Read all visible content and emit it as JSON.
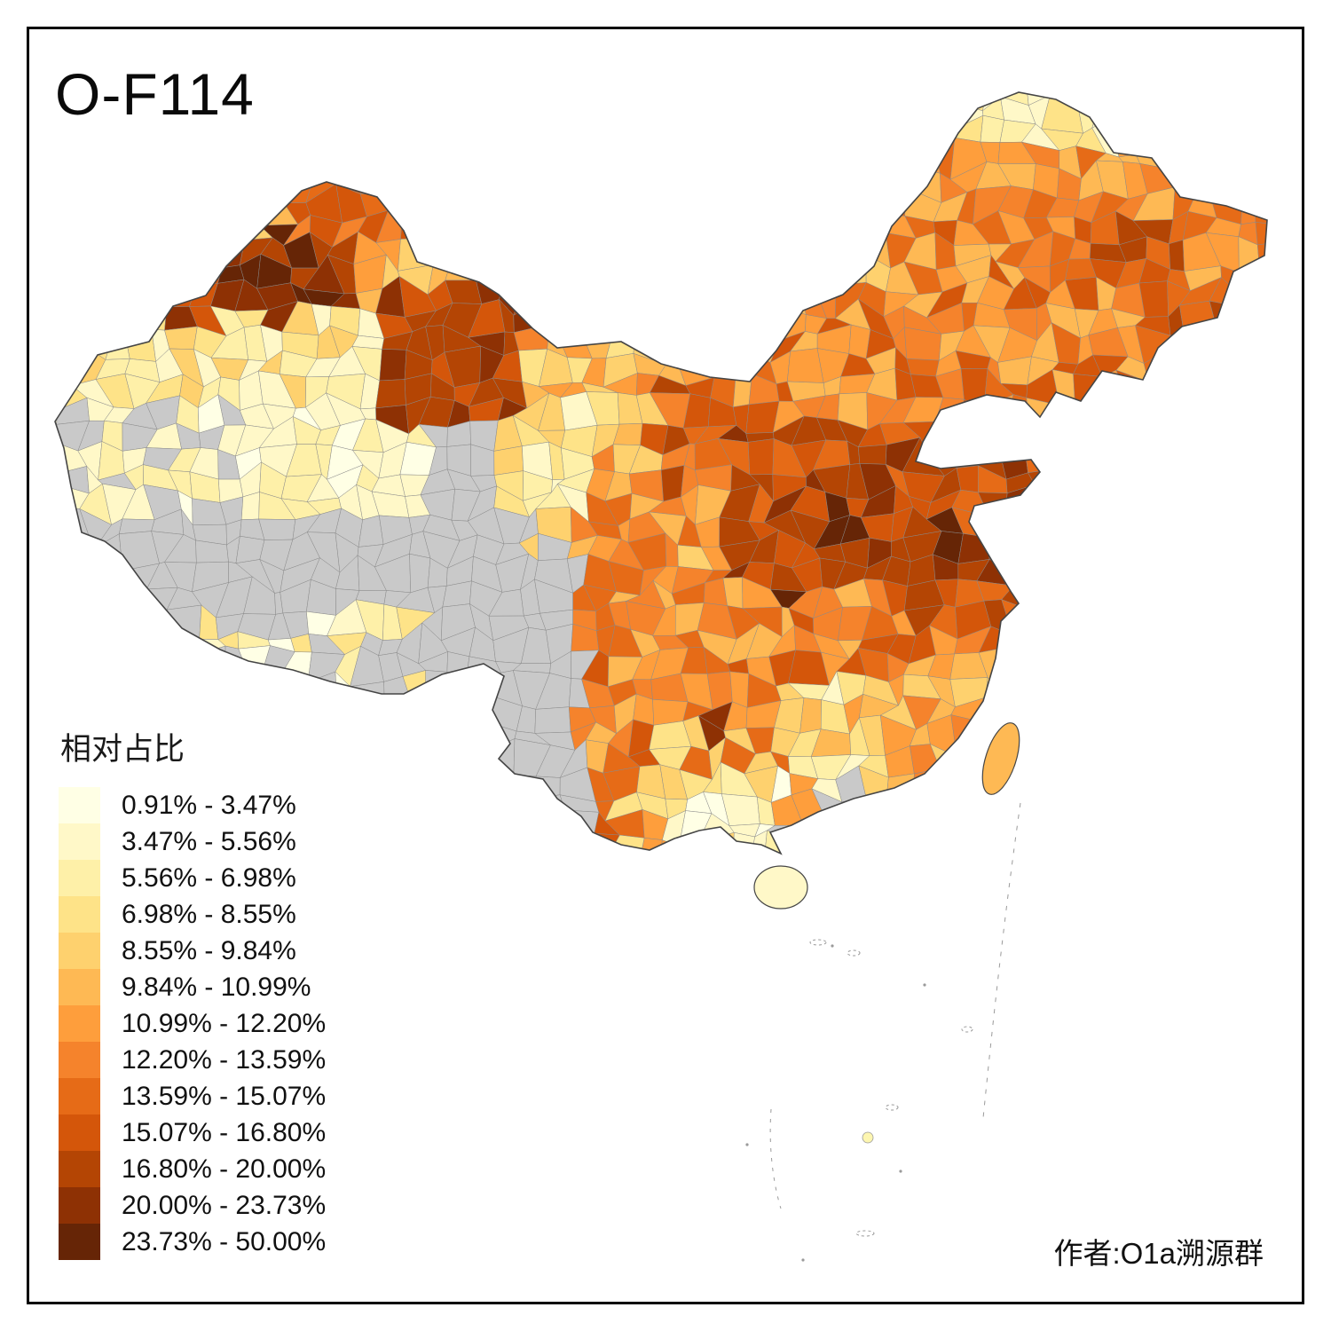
{
  "title": "O-F114",
  "author": "作者:O1a溯源群",
  "legend": {
    "title": "相对占比",
    "items": [
      {
        "label": "0.91% - 3.47%",
        "color": "#FFFFE5"
      },
      {
        "label": "3.47% - 5.56%",
        "color": "#FFF8C8"
      },
      {
        "label": "5.56% - 6.98%",
        "color": "#FEF0A8"
      },
      {
        "label": "6.98% - 8.55%",
        "color": "#FEE388"
      },
      {
        "label": "8.55% - 9.84%",
        "color": "#FED16E"
      },
      {
        "label": "9.84% - 10.99%",
        "color": "#FEB954"
      },
      {
        "label": "10.99% - 12.20%",
        "color": "#FE9E3C"
      },
      {
        "label": "12.20% - 13.59%",
        "color": "#F5832C"
      },
      {
        "label": "13.59% - 15.07%",
        "color": "#E66B17"
      },
      {
        "label": "15.07% - 16.80%",
        "color": "#D4560A"
      },
      {
        "label": "16.80% - 20.00%",
        "color": "#B44504"
      },
      {
        "label": "20.00% - 23.73%",
        "color": "#8E3104"
      },
      {
        "label": "23.73% - 50.00%",
        "color": "#662506"
      }
    ]
  },
  "map": {
    "no_data_color": "#C9C9C9",
    "outline_color": "#454545",
    "cell_border_color": "#8a8a8a"
  },
  "chart_data": {
    "type": "choropleth",
    "title": "O-F114",
    "region": "China, prefecture-level divisions",
    "value_label": "相对占比",
    "bins": [
      "0.91% - 3.47%",
      "3.47% - 5.56%",
      "5.56% - 6.98%",
      "6.98% - 8.55%",
      "8.55% - 9.84%",
      "9.84% - 10.99%",
      "10.99% - 12.20%",
      "12.20% - 13.59%",
      "13.59% - 15.07%",
      "15.07% - 16.80%",
      "16.80% - 20.00%",
      "20.00% - 23.73%",
      "23.73% - 50.00%"
    ],
    "palette": [
      "#FFFFE5",
      "#FFF8C8",
      "#FEF0A8",
      "#FEE388",
      "#FED16E",
      "#FEB954",
      "#FE9E3C",
      "#F5832C",
      "#E66B17",
      "#D4560A",
      "#B44504",
      "#8E3104",
      "#662506"
    ],
    "no_data_color": "#C9C9C9",
    "legend_position": "bottom-left",
    "annotations": [
      "作者:O1a溯源群"
    ]
  }
}
